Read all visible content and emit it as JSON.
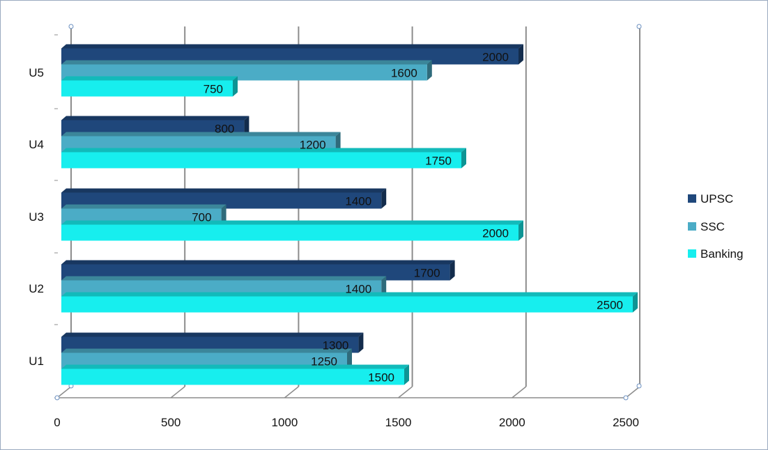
{
  "chart_data": {
    "type": "bar",
    "orientation": "horizontal",
    "style": "3d-clustered",
    "categories": [
      "U1",
      "U2",
      "U3",
      "U4",
      "U5"
    ],
    "series": [
      {
        "name": "UPSC",
        "color": "#1f477b",
        "values": [
          1300,
          1700,
          1400,
          800,
          2000
        ]
      },
      {
        "name": "SSC",
        "color": "#4bacc6",
        "values": [
          1250,
          1400,
          700,
          1200,
          1600
        ]
      },
      {
        "name": "Banking",
        "color": "#17eeee",
        "values": [
          1500,
          2500,
          2000,
          1750,
          750
        ]
      }
    ],
    "xlim": [
      0,
      2500
    ],
    "xticks": [
      "0",
      "500",
      "1000",
      "1500",
      "2000",
      "2500"
    ],
    "grid": true,
    "legend_position": "right",
    "data_labels": true
  }
}
